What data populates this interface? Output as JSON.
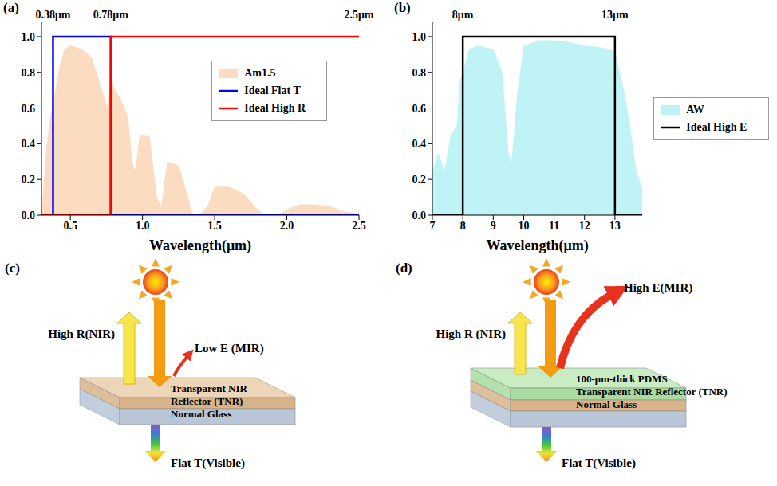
{
  "chart_data": [
    {
      "panel": "(a)",
      "type": "line",
      "x_label": "Wavelength(μm)",
      "xlim": [
        0.3,
        2.5
      ],
      "xticks": [
        0.5,
        {
          "value": 1,
          "label": "1.0"
        },
        1.5,
        {
          "value": 2,
          "label": "2.0"
        },
        2.5
      ],
      "ylim": [
        0,
        1.08
      ],
      "yticks": [
        {
          "value": 0,
          "label": "0.0"
        },
        0.2,
        0.4,
        0.6,
        0.8,
        {
          "value": 1,
          "label": "1.0"
        }
      ],
      "legend": "upper right",
      "annotations": [
        {
          "x": 0.38,
          "text": "0.38μm"
        },
        {
          "x": 0.78,
          "text": "0.78μm"
        },
        {
          "x": 2.5,
          "text": "2.5μm"
        }
      ],
      "series": [
        {
          "name": "Am1.5",
          "type": "area",
          "color": "#fcdcc0",
          "x": [
            0.3,
            0.33,
            0.36,
            0.4,
            0.43,
            0.46,
            0.5,
            0.55,
            0.6,
            0.65,
            0.69,
            0.72,
            0.76,
            0.78,
            0.81,
            0.85,
            0.9,
            0.93,
            0.95,
            0.98,
            1.05,
            1.1,
            1.13,
            1.17,
            1.25,
            1.3,
            1.35,
            1.4,
            1.45,
            1.5,
            1.6,
            1.7,
            1.8,
            1.85,
            1.95,
            2.0,
            2.05,
            2.1,
            2.2,
            2.3,
            2.4,
            2.5
          ],
          "values": [
            0,
            0.35,
            0.55,
            0.72,
            0.85,
            0.93,
            0.95,
            0.94,
            0.92,
            0.88,
            0.78,
            0.7,
            0.6,
            0.78,
            0.7,
            0.65,
            0.55,
            0.3,
            0.25,
            0.45,
            0.44,
            0.1,
            0.05,
            0.3,
            0.28,
            0.15,
            0,
            0.01,
            0.05,
            0.16,
            0.16,
            0.12,
            0.03,
            0,
            0.01,
            0.03,
            0.05,
            0.06,
            0.06,
            0.05,
            0.02,
            0.01
          ]
        },
        {
          "name": "Ideal Flat T",
          "type": "line",
          "line_style": "step",
          "color": "#0000ff",
          "x": [
            0.3,
            0.38,
            0.78,
            2.5
          ],
          "values": [
            0,
            1,
            0,
            0
          ]
        },
        {
          "name": "Ideal High R",
          "type": "line",
          "line_style": "step",
          "color": "#ff0000",
          "x": [
            0.3,
            0.78,
            2.5
          ],
          "values": [
            0,
            1,
            1
          ]
        }
      ]
    },
    {
      "panel": "(b)",
      "type": "line",
      "x_label": "Wavelength(μm)",
      "xlim": [
        7,
        13.9
      ],
      "xticks": [
        7,
        8,
        9,
        10,
        11,
        12,
        13
      ],
      "ylim": [
        0,
        1.08
      ],
      "yticks": [
        {
          "value": 0,
          "label": "0.0"
        },
        0.2,
        0.4,
        0.6,
        0.8,
        {
          "value": 1,
          "label": "1.0"
        }
      ],
      "legend": "right",
      "annotations": [
        {
          "x": 8,
          "text": "8μm"
        },
        {
          "x": 13,
          "text": "13μm"
        }
      ],
      "series": [
        {
          "name": "AW",
          "type": "area",
          "color": "#bff3f5",
          "x": [
            7.0,
            7.2,
            7.4,
            7.6,
            7.8,
            7.9,
            8.0,
            8.2,
            8.5,
            9.0,
            9.3,
            9.5,
            9.6,
            9.8,
            10.0,
            10.5,
            11.0,
            11.5,
            12.0,
            12.5,
            13.0,
            13.3,
            13.5,
            13.7,
            13.9
          ],
          "values": [
            0.25,
            0.35,
            0.25,
            0.45,
            0.5,
            0.75,
            0.8,
            0.93,
            0.95,
            0.93,
            0.8,
            0.35,
            0.3,
            0.7,
            0.95,
            0.98,
            0.98,
            0.97,
            0.95,
            0.94,
            0.92,
            0.7,
            0.5,
            0.25,
            0.15
          ]
        },
        {
          "name": "Ideal High E",
          "type": "line",
          "line_style": "step",
          "color": "#000000",
          "x": [
            7,
            8,
            13,
            13.9
          ],
          "values": [
            0,
            1,
            0,
            0
          ]
        }
      ]
    }
  ],
  "diagrams": [
    {
      "panel": "(c)",
      "up_label": "High R(NIR)",
      "emission_label": "Low E (MIR)",
      "layers": [
        "Transparent NIR Reflector (TNR)",
        "Normal Glass"
      ],
      "down_label": "Flat T(Visible)"
    },
    {
      "panel": "(d)",
      "up_label": "High R (NIR)",
      "emission_label": "High E(MIR)",
      "layers": [
        "100-μm-thick PDMS",
        "Transparent NIR Reflector (TNR)",
        "Normal Glass"
      ],
      "down_label": "Flat T(Visible)"
    }
  ]
}
